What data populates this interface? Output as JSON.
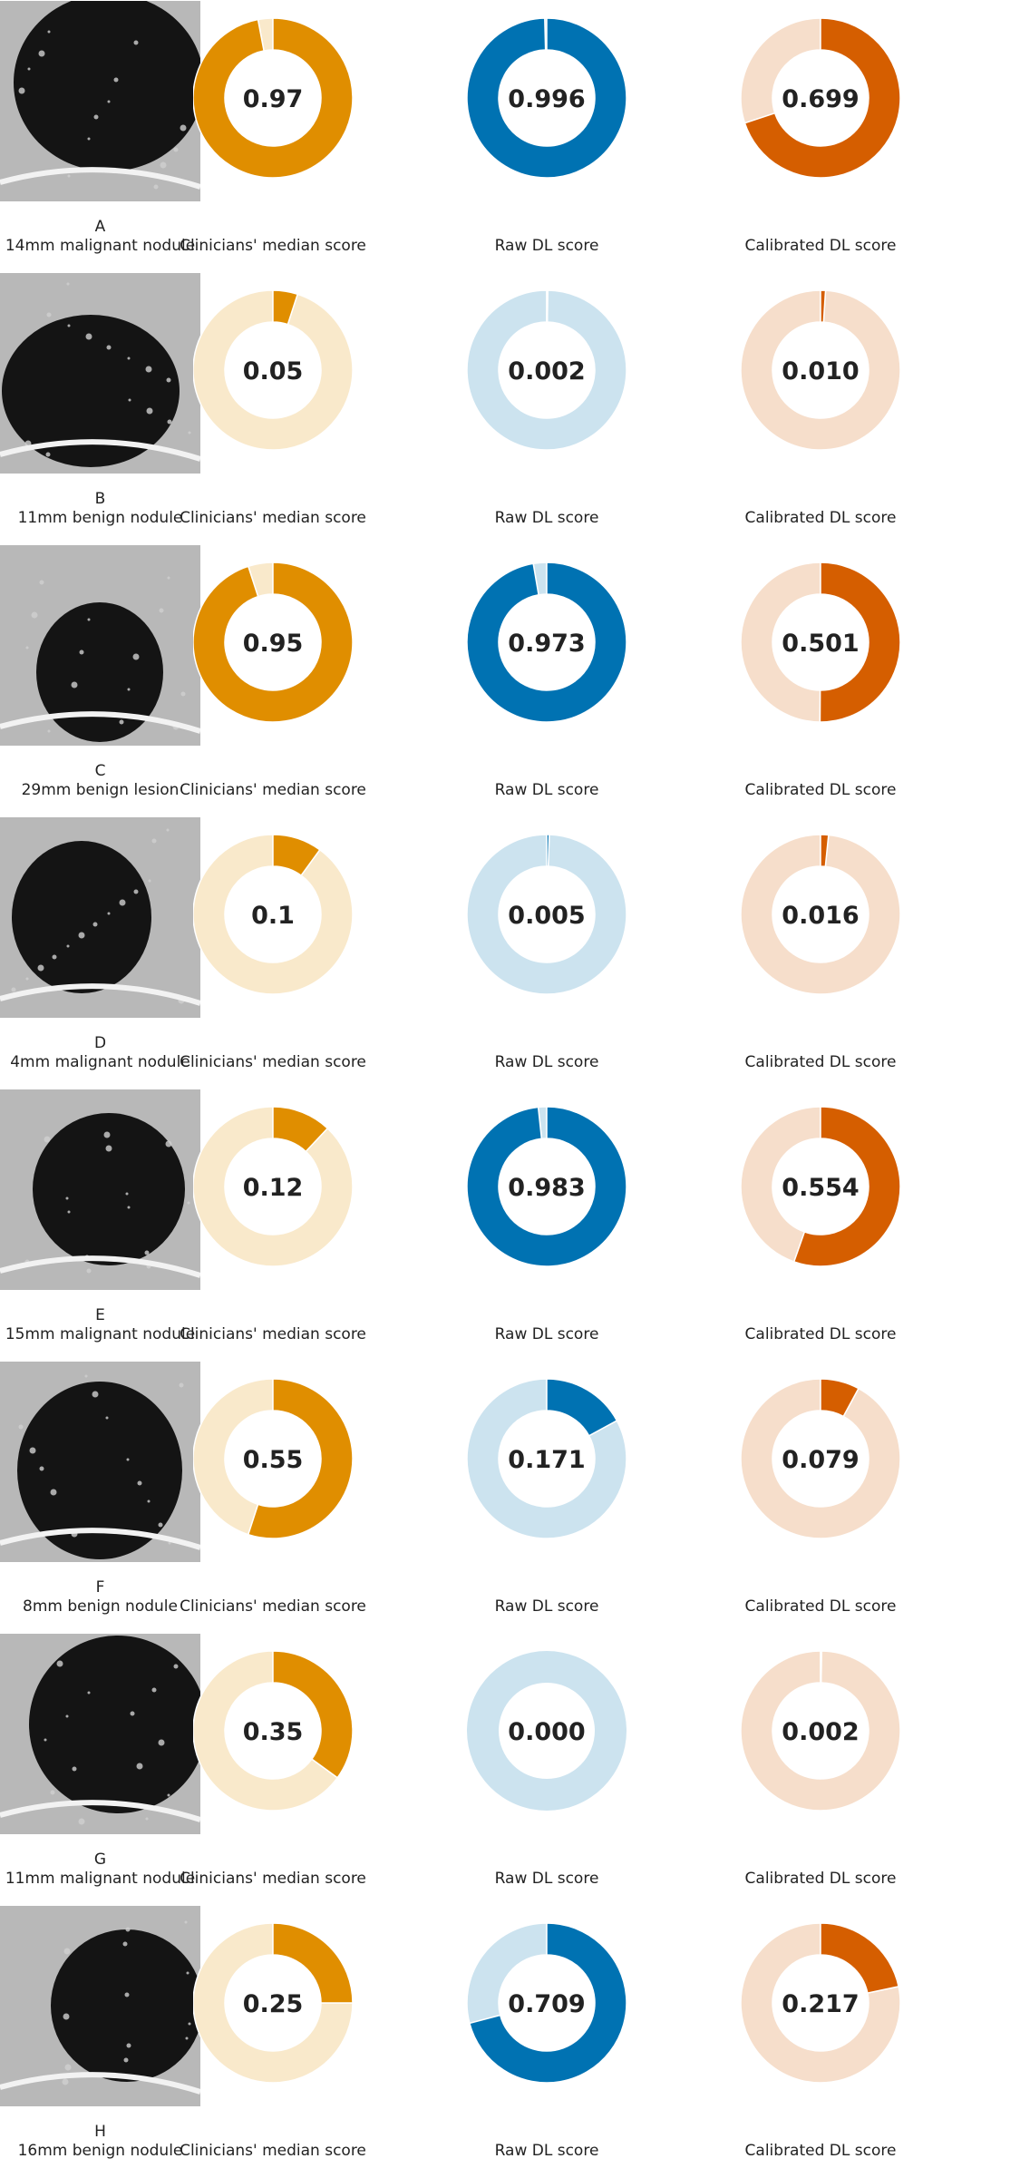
{
  "chart_data": {
    "type": "pie",
    "layout": "8 rows of donut charts (one per case), 3 donuts per row, CT image thumbnail at left",
    "columns": [
      {
        "key": "clinicians",
        "label": "Clinicians' median score",
        "color": "#E08E00",
        "track_color": "#F9E9CB"
      },
      {
        "key": "raw",
        "label": "Raw DL score",
        "color": "#0072B2",
        "track_color": "#CCE3EF"
      },
      {
        "key": "calibrated",
        "label": "Calibrated DL score",
        "color": "#D55E00",
        "track_color": "#F6DECB"
      }
    ],
    "value_range": [
      0,
      1
    ],
    "cases": [
      {
        "letter": "A",
        "description": "14mm malignant nodule",
        "clinicians": "0.97",
        "raw": "0.996",
        "calibrated": "0.699"
      },
      {
        "letter": "B",
        "description": "11mm benign nodule",
        "clinicians": "0.05",
        "raw": "0.002",
        "calibrated": "0.010"
      },
      {
        "letter": "C",
        "description": "29mm benign lesion",
        "clinicians": "0.95",
        "raw": "0.973",
        "calibrated": "0.501"
      },
      {
        "letter": "D",
        "description": "4mm malignant nodule",
        "clinicians": "0.1",
        "raw": "0.005",
        "calibrated": "0.016"
      },
      {
        "letter": "E",
        "description": "15mm malignant nodule",
        "clinicians": "0.12",
        "raw": "0.983",
        "calibrated": "0.554"
      },
      {
        "letter": "F",
        "description": "8mm benign nodule",
        "clinicians": "0.55",
        "raw": "0.171",
        "calibrated": "0.079"
      },
      {
        "letter": "G",
        "description": "11mm malignant nodule",
        "clinicians": "0.35",
        "raw": "0.000",
        "calibrated": "0.002"
      },
      {
        "letter": "H",
        "description": "16mm benign nodule",
        "clinicians": "0.25",
        "raw": "0.709",
        "calibrated": "0.217"
      }
    ]
  }
}
